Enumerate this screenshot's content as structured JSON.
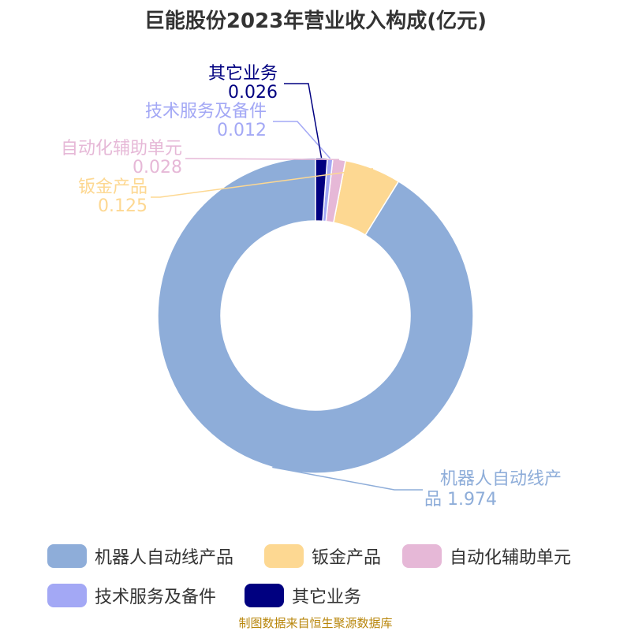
{
  "title": "巨能股份2023年营业收入构成(亿元)",
  "source": "制图数据来自恒生聚源数据库",
  "chart_data": {
    "type": "pie",
    "title": "巨能股份2023年营业收入构成(亿元)",
    "donut": true,
    "slices": [
      {
        "label": "机器人自动线产品",
        "value": 1.974,
        "value_text": "1.974",
        "color": "#8eadd9"
      },
      {
        "label": "钣金产品",
        "value": 0.125,
        "value_text": "0.125",
        "color": "#fdd892"
      },
      {
        "label": "自动化辅助单元",
        "value": 0.028,
        "value_text": "0.028",
        "color": "#e6b8d7"
      },
      {
        "label": "技术服务及备件",
        "value": 0.012,
        "value_text": "0.012",
        "color": "#a3a8f5"
      },
      {
        "label": "其它业务",
        "value": 0.026,
        "value_text": "0.026",
        "color": "#000080"
      }
    ],
    "legend_position": "bottom"
  }
}
